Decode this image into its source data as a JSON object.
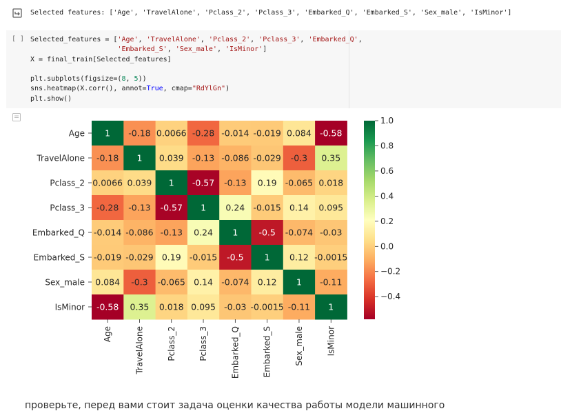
{
  "output": {
    "text": "Selected features: ['Age', 'TravelAlone', 'Pclass_2', 'Pclass_3', 'Embarked_Q', 'Embarked_S', 'Sex_male', 'IsMinor']"
  },
  "cell": {
    "run_label": "[ ]",
    "code_lines": [
      "Selected_features = ['Age', 'TravelAlone', 'Pclass_2', 'Pclass_3', 'Embarked_Q',",
      "                     'Embarked_S', 'Sex_male', 'IsMinor']",
      "X = final_train[Selected_features]",
      "",
      "plt.subplots(figsize=(8, 5))",
      "sns.heatmap(X.corr(), annot=True, cmap=\"RdYlGn\")",
      "plt.show()"
    ]
  },
  "icons": {
    "output_icon": "output-arrow-icon",
    "output_icon_2": "output-menu-icon"
  },
  "chart_data": {
    "type": "heatmap",
    "cmap": "RdYlGn",
    "labels": [
      "Age",
      "TravelAlone",
      "Pclass_2",
      "Pclass_3",
      "Embarked_Q",
      "Embarked_S",
      "Sex_male",
      "IsMinor"
    ],
    "values": [
      [
        1,
        -0.18,
        0.0066,
        -0.28,
        -0.014,
        -0.019,
        0.084,
        -0.58
      ],
      [
        -0.18,
        1,
        0.039,
        -0.13,
        -0.086,
        -0.029,
        -0.3,
        0.35
      ],
      [
        0.0066,
        0.039,
        1,
        -0.57,
        -0.13,
        0.19,
        -0.065,
        0.018
      ],
      [
        -0.28,
        -0.13,
        -0.57,
        1,
        0.24,
        -0.015,
        0.14,
        0.095
      ],
      [
        -0.014,
        -0.086,
        -0.13,
        0.24,
        1,
        -0.5,
        -0.074,
        -0.03
      ],
      [
        -0.019,
        -0.029,
        0.19,
        -0.015,
        -0.5,
        1,
        0.12,
        -0.0015
      ],
      [
        0.084,
        -0.3,
        -0.065,
        0.14,
        -0.074,
        0.12,
        1,
        -0.11
      ],
      [
        -0.58,
        0.35,
        0.018,
        0.095,
        -0.03,
        -0.0015,
        -0.11,
        1
      ]
    ],
    "annotations": [
      [
        "1",
        "-0.18",
        "0.0066",
        "-0.28",
        "-0.014",
        "-0.019",
        "0.084",
        "-0.58"
      ],
      [
        "-0.18",
        "1",
        "0.039",
        "-0.13",
        "-0.086",
        "-0.029",
        "-0.3",
        "0.35"
      ],
      [
        "0.0066",
        "0.039",
        "1",
        "-0.57",
        "-0.13",
        "0.19",
        "-0.065",
        "0.018"
      ],
      [
        "-0.28",
        "-0.13",
        "-0.57",
        "1",
        "0.24",
        "-0.015",
        "0.14",
        "0.095"
      ],
      [
        "-0.014",
        "-0.086",
        "-0.13",
        "0.24",
        "1",
        "-0.5",
        "-0.074",
        "-0.03"
      ],
      [
        "-0.019",
        "-0.029",
        "0.19",
        "-0.015",
        "-0.5",
        "1",
        "0.12",
        "-0.0015"
      ],
      [
        "0.084",
        "-0.3",
        "-0.065",
        "0.14",
        "-0.074",
        "0.12",
        "1",
        "-0.11"
      ],
      [
        "-0.58",
        "0.35",
        "0.018",
        "0.095",
        "-0.03",
        "-0.0015",
        "-0.11",
        "1"
      ]
    ],
    "vmin": -0.58,
    "vmax": 1.0,
    "colorbar_ticks": [
      1.0,
      0.8,
      0.6,
      0.4,
      0.2,
      0.0,
      -0.2,
      -0.4
    ],
    "colorbar_tick_labels": [
      "1.0",
      "0.8",
      "0.6",
      "0.4",
      "0.2",
      "0.0",
      "−0.2",
      "−0.4"
    ]
  },
  "footer": {
    "text": "проверьте, перед вами стоит задача оценки качества работы модели машинного"
  }
}
